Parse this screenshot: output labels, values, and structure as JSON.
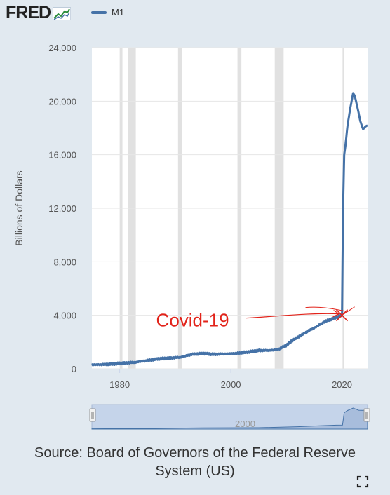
{
  "header": {
    "logo_text": "FRED",
    "legend_label": "M1"
  },
  "colors": {
    "background": "#e1e9f0",
    "plot_background": "#ffffff",
    "series": "#4572a7",
    "recession": "#e1e1e1",
    "annotation": "#e2231a",
    "navigator_fill": "#c5d4ea"
  },
  "chart_data": {
    "type": "line",
    "title": "",
    "xlabel": "",
    "ylabel": "Billions of Dollars",
    "xlim": [
      1975,
      2024.6
    ],
    "ylim": [
      0,
      24000
    ],
    "y_ticks": [
      0,
      4000,
      8000,
      12000,
      16000,
      20000,
      24000
    ],
    "y_tick_labels": [
      "0",
      "4,000",
      "8,000",
      "12,000",
      "16,000",
      "20,000",
      "24,000"
    ],
    "x_ticks": [
      1980,
      2000,
      2020
    ],
    "x_tick_labels": [
      "1980",
      "2000",
      "2020"
    ],
    "grid": true,
    "legend_position": "top",
    "recessions": [
      [
        1980.0,
        1980.5
      ],
      [
        1981.5,
        1982.9
      ],
      [
        1990.5,
        1991.2
      ],
      [
        2001.2,
        2001.9
      ],
      [
        2007.9,
        2009.5
      ],
      [
        2020.1,
        2020.4
      ]
    ],
    "series": [
      {
        "name": "M1",
        "x": [
          1975,
          1977,
          1979,
          1981,
          1983,
          1985,
          1987,
          1989,
          1991,
          1993,
          1995,
          1997,
          1999,
          2001,
          2003,
          2005,
          2007,
          2008.5,
          2010,
          2011,
          2012,
          2013,
          2014,
          2015,
          2016,
          2017,
          2018,
          2019,
          2020.0,
          2020.2,
          2020.4,
          2020.6,
          2021.0,
          2021.5,
          2022.0,
          2022.3,
          2022.8,
          2023.3,
          2023.8,
          2024.2,
          2024.6
        ],
        "y": [
          290,
          320,
          370,
          430,
          500,
          620,
          750,
          790,
          870,
          1080,
          1150,
          1080,
          1120,
          1150,
          1250,
          1370,
          1370,
          1450,
          1750,
          2100,
          2350,
          2600,
          2850,
          3050,
          3300,
          3550,
          3700,
          3850,
          4000,
          12000,
          16000,
          16600,
          18200,
          19500,
          20600,
          20400,
          19500,
          18500,
          17900,
          18100,
          18200
        ]
      }
    ],
    "annotations": [
      {
        "text": "Covid-19",
        "x": 2020.0,
        "y": 4000
      }
    ]
  },
  "navigator": {
    "label": "2000",
    "series": [
      {
        "x": [
          1975,
          1985,
          1995,
          2005,
          2012,
          2016,
          2019,
          2020.1,
          2020.4,
          2021,
          2022,
          2023,
          2024.6
        ],
        "y": [
          290,
          620,
          1150,
          1370,
          2350,
          3300,
          3850,
          4000,
          16000,
          18200,
          20600,
          18500,
          18200
        ]
      }
    ]
  },
  "footer": {
    "source": "Source: Board of Governors of the Federal Reserve System (US)"
  }
}
